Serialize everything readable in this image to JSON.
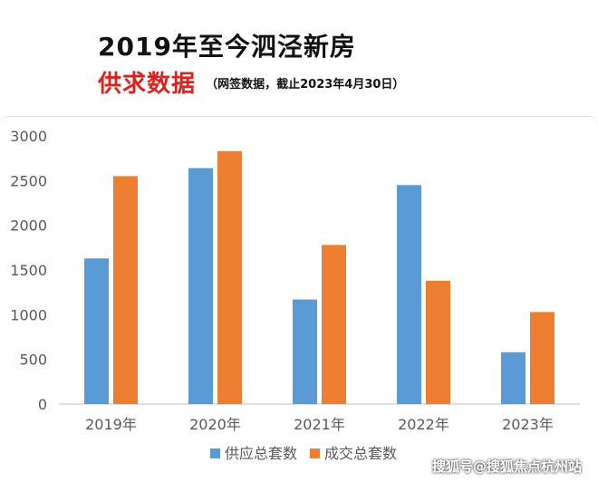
{
  "header": {
    "title": "2019年至今泗泾新房",
    "subtitle": "供求数据",
    "note": "（网签数据，截止2023年4月30日）"
  },
  "watermark": "搜狐号@搜狐焦点杭州站",
  "chart_data": {
    "type": "bar",
    "categories": [
      "2019年",
      "2020年",
      "2021年",
      "2022年",
      "2023年"
    ],
    "series": [
      {
        "name": "供应总套数",
        "values": [
          1630,
          2640,
          1170,
          2450,
          580
        ],
        "color": "#5b9bd5"
      },
      {
        "name": "成交总套数",
        "values": [
          2550,
          2830,
          1780,
          1380,
          1030
        ],
        "color": "#ed7d31"
      }
    ],
    "ylim": [
      0,
      3000
    ],
    "yticks": [
      0,
      500,
      1000,
      1500,
      2000,
      2500,
      3000
    ],
    "grid": false,
    "legend": "bottom"
  }
}
